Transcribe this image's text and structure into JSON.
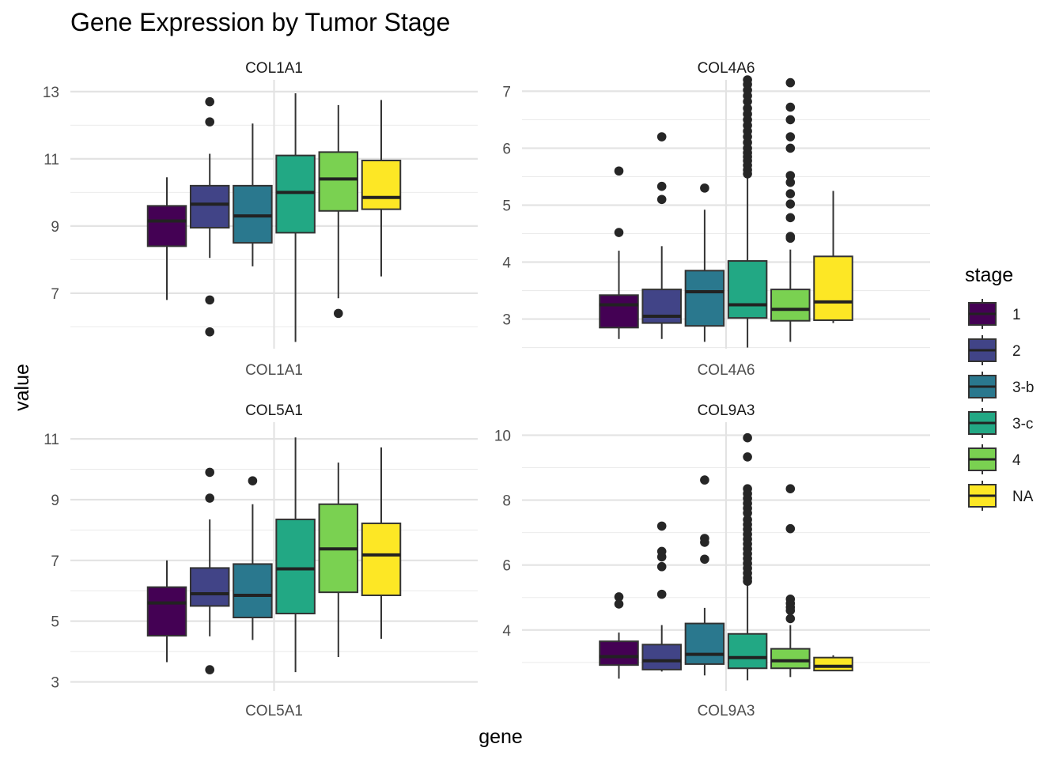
{
  "chart_data": {
    "type": "box",
    "title": "Gene Expression by Tumor Stage",
    "xlabel": "gene",
    "ylabel": "value",
    "legend": {
      "title": "stage",
      "placement": "right",
      "entries": [
        {
          "label": "1",
          "color": "#440154"
        },
        {
          "label": "2",
          "color": "#414487"
        },
        {
          "label": "3-b",
          "color": "#2A788E"
        },
        {
          "label": "3-c",
          "color": "#22A884"
        },
        {
          "label": "4",
          "color": "#7AD151"
        },
        {
          "label": "NA",
          "color": "#FDE725"
        }
      ]
    },
    "grid": true,
    "facets": [
      {
        "name": "COL1A1",
        "x_tick": "COL1A1",
        "ylim": [
          5.35,
          13.35
        ],
        "y_ticks": [
          7,
          9,
          11,
          13
        ],
        "y_tick_labels": [
          "7",
          "9",
          "11",
          "13"
        ],
        "boxes": [
          {
            "stage": "1",
            "min": 6.8,
            "q1": 8.4,
            "median": 9.15,
            "q3": 9.6,
            "max": 10.45,
            "outliers": []
          },
          {
            "stage": "2",
            "min": 8.05,
            "q1": 8.95,
            "median": 9.65,
            "q3": 10.2,
            "max": 11.15,
            "outliers": [
              12.7,
              12.1,
              6.8,
              5.85
            ]
          },
          {
            "stage": "3-b",
            "min": 7.8,
            "q1": 8.5,
            "median": 9.3,
            "q3": 10.2,
            "max": 12.05,
            "outliers": []
          },
          {
            "stage": "3-c",
            "min": 5.55,
            "q1": 8.8,
            "median": 10.0,
            "q3": 11.1,
            "max": 12.95,
            "outliers": []
          },
          {
            "stage": "4",
            "min": 6.85,
            "q1": 9.45,
            "median": 10.4,
            "q3": 11.2,
            "max": 12.6,
            "outliers": [
              6.4
            ]
          },
          {
            "stage": "NA",
            "min": 7.5,
            "q1": 9.5,
            "median": 9.85,
            "q3": 10.95,
            "max": 12.75,
            "outliers": []
          }
        ]
      },
      {
        "name": "COL4A6",
        "x_tick": "COL4A6",
        "ylim": [
          2.48,
          7.2
        ],
        "y_ticks": [
          3,
          4,
          5,
          6,
          7
        ],
        "y_tick_labels": [
          "3",
          "4",
          "5",
          "6",
          "7"
        ],
        "boxes": [
          {
            "stage": "1",
            "min": 2.65,
            "q1": 2.85,
            "median": 3.25,
            "q3": 3.42,
            "max": 4.2,
            "outliers": [
              5.6,
              4.52
            ]
          },
          {
            "stage": "2",
            "min": 2.65,
            "q1": 2.93,
            "median": 3.05,
            "q3": 3.52,
            "max": 4.28,
            "outliers": [
              6.2,
              5.33,
              5.1
            ]
          },
          {
            "stage": "3-b",
            "min": 2.6,
            "q1": 2.88,
            "median": 3.48,
            "q3": 3.85,
            "max": 4.92,
            "outliers": [
              5.3
            ]
          },
          {
            "stage": "3-c",
            "min": 2.5,
            "q1": 3.02,
            "median": 3.25,
            "q3": 4.02,
            "max": 5.5,
            "outliers": [
              7.2,
              7.12,
              7.02,
              6.92,
              6.82,
              6.7,
              6.6,
              6.5,
              6.4,
              6.3,
              6.2,
              6.1,
              6.0,
              5.92,
              5.85,
              5.78,
              5.7,
              5.62,
              5.55
            ]
          },
          {
            "stage": "4",
            "min": 2.6,
            "q1": 2.97,
            "median": 3.17,
            "q3": 3.52,
            "max": 4.22,
            "outliers": [
              7.15,
              6.72,
              6.5,
              6.2,
              6.0,
              5.52,
              5.4,
              5.2,
              5.02,
              4.78,
              4.45,
              4.42
            ]
          },
          {
            "stage": "NA",
            "min": 2.93,
            "q1": 2.98,
            "median": 3.3,
            "q3": 4.1,
            "max": 5.25,
            "outliers": []
          }
        ]
      },
      {
        "name": "COL5A1",
        "x_tick": "COL5A1",
        "ylim": [
          2.7,
          11.55
        ],
        "y_ticks": [
          3,
          5,
          7,
          9,
          11
        ],
        "y_tick_labels": [
          "3",
          "5",
          "7",
          "9",
          "11"
        ],
        "boxes": [
          {
            "stage": "1",
            "min": 3.65,
            "q1": 4.52,
            "median": 5.6,
            "q3": 6.12,
            "max": 7.0,
            "outliers": []
          },
          {
            "stage": "2",
            "min": 4.5,
            "q1": 5.5,
            "median": 5.9,
            "q3": 6.75,
            "max": 8.35,
            "outliers": [
              9.9,
              9.05,
              3.4
            ]
          },
          {
            "stage": "3-b",
            "min": 4.38,
            "q1": 5.12,
            "median": 5.85,
            "q3": 6.88,
            "max": 8.85,
            "outliers": [
              9.62
            ]
          },
          {
            "stage": "3-c",
            "min": 3.32,
            "q1": 5.25,
            "median": 6.72,
            "q3": 8.35,
            "max": 11.05,
            "outliers": []
          },
          {
            "stage": "4",
            "min": 3.82,
            "q1": 5.95,
            "median": 7.38,
            "q3": 8.85,
            "max": 10.22,
            "outliers": []
          },
          {
            "stage": "NA",
            "min": 4.42,
            "q1": 5.85,
            "median": 7.18,
            "q3": 8.22,
            "max": 10.72,
            "outliers": []
          }
        ]
      },
      {
        "name": "COL9A3",
        "x_tick": "COL9A3",
        "ylim": [
          2.12,
          10.4
        ],
        "y_ticks": [
          4,
          6,
          8,
          10
        ],
        "y_tick_labels": [
          "4",
          "6",
          "8",
          "10"
        ],
        "boxes": [
          {
            "stage": "1",
            "min": 2.5,
            "q1": 2.92,
            "median": 3.18,
            "q3": 3.65,
            "max": 3.92,
            "outliers": [
              5.02,
              4.8
            ]
          },
          {
            "stage": "2",
            "min": 2.72,
            "q1": 2.78,
            "median": 3.05,
            "q3": 3.55,
            "max": 4.15,
            "outliers": [
              7.2,
              6.42,
              6.25,
              5.95,
              5.1
            ]
          },
          {
            "stage": "3-b",
            "min": 2.6,
            "q1": 2.95,
            "median": 3.25,
            "q3": 4.2,
            "max": 4.68,
            "outliers": [
              8.62,
              6.82,
              6.7,
              6.18
            ]
          },
          {
            "stage": "3-c",
            "min": 2.45,
            "q1": 2.82,
            "median": 3.15,
            "q3": 3.88,
            "max": 5.45,
            "outliers": [
              9.92,
              9.33,
              8.35,
              8.2,
              8.05,
              7.9,
              7.75,
              7.6,
              7.4,
              7.25,
              7.1,
              6.95,
              6.8,
              6.65,
              6.5,
              6.35,
              6.2,
              6.05,
              5.9,
              5.75,
              5.6,
              5.5
            ]
          },
          {
            "stage": "4",
            "min": 2.55,
            "q1": 2.82,
            "median": 3.05,
            "q3": 3.42,
            "max": 4.15,
            "outliers": [
              8.35,
              7.12,
              4.95,
              4.82,
              4.7,
              4.6,
              4.35
            ]
          },
          {
            "stage": "NA",
            "min": 2.75,
            "q1": 2.75,
            "median": 2.88,
            "q3": 3.15,
            "max": 3.22,
            "outliers": []
          }
        ]
      }
    ]
  }
}
